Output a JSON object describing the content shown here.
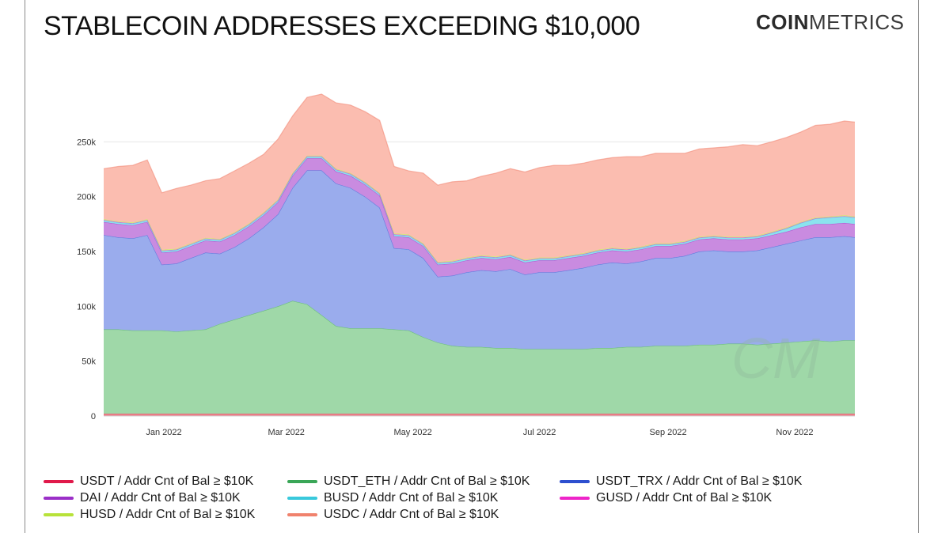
{
  "header": {
    "title": "STABLECOIN ADDRESSES EXCEEDING $10,000",
    "brand_bold": "COIN",
    "brand_thin": "METRICS"
  },
  "chart_data": {
    "type": "area",
    "stacked": true,
    "title": "STABLECOIN ADDRESSES EXCEEDING $10,000",
    "xlabel": "",
    "ylabel": "",
    "ylim": [
      0,
      300000
    ],
    "y_ticks": [
      0,
      50000,
      100000,
      150000,
      200000,
      250000
    ],
    "y_tick_labels": [
      "0",
      "50k",
      "100k",
      "150k",
      "200k",
      "250k"
    ],
    "x_ticks": [
      "2022-01-01",
      "2022-03-01",
      "2022-05-01",
      "2022-07-01",
      "2022-09-01",
      "2022-11-01"
    ],
    "x_tick_labels": [
      "Jan 2022",
      "Mar 2022",
      "May 2022",
      "Jul 2022",
      "Sep 2022",
      "Nov 2022"
    ],
    "x_range": [
      "2021-12-03",
      "2022-11-30"
    ],
    "grid": "horizontal",
    "legend_position": "bottom",
    "x": [
      "2021-12-03",
      "2021-12-10",
      "2021-12-17",
      "2021-12-24",
      "2021-12-31",
      "2022-01-07",
      "2022-01-14",
      "2022-01-21",
      "2022-01-28",
      "2022-02-04",
      "2022-02-11",
      "2022-02-18",
      "2022-02-25",
      "2022-03-04",
      "2022-03-11",
      "2022-03-18",
      "2022-03-25",
      "2022-04-01",
      "2022-04-08",
      "2022-04-15",
      "2022-04-22",
      "2022-04-29",
      "2022-05-06",
      "2022-05-13",
      "2022-05-20",
      "2022-05-27",
      "2022-06-03",
      "2022-06-10",
      "2022-06-17",
      "2022-06-24",
      "2022-07-01",
      "2022-07-08",
      "2022-07-15",
      "2022-07-22",
      "2022-07-29",
      "2022-08-05",
      "2022-08-12",
      "2022-08-19",
      "2022-08-26",
      "2022-09-02",
      "2022-09-09",
      "2022-09-16",
      "2022-09-23",
      "2022-09-30",
      "2022-10-07",
      "2022-10-14",
      "2022-10-21",
      "2022-10-28",
      "2022-11-04",
      "2022-11-11",
      "2022-11-18",
      "2022-11-25",
      "2022-11-30"
    ],
    "series": [
      {
        "name": "USDT / Addr Cnt of Bal ≥ $10K",
        "color": "#e0194a",
        "values": [
          2000,
          2000,
          2000,
          2000,
          2000,
          2000,
          2000,
          2000,
          2000,
          2000,
          2000,
          2000,
          2000,
          2000,
          2000,
          2000,
          2000,
          2000,
          2000,
          2000,
          2000,
          2000,
          2000,
          2000,
          2000,
          2000,
          2000,
          2000,
          2000,
          2000,
          2000,
          2000,
          2000,
          2000,
          2000,
          2000,
          2000,
          2000,
          2000,
          2000,
          2000,
          2000,
          2000,
          2000,
          2000,
          2000,
          2000,
          2000,
          2000,
          2000,
          2000,
          2000,
          2000
        ]
      },
      {
        "name": "USDT_ETH / Addr Cnt of Bal ≥ $10K",
        "color": "#3aa657",
        "values": [
          77000,
          77000,
          76000,
          76000,
          76000,
          75000,
          76000,
          77000,
          82000,
          86000,
          90000,
          94000,
          98000,
          103000,
          100000,
          90000,
          80000,
          78000,
          78000,
          78000,
          77000,
          76000,
          70000,
          65000,
          62000,
          61000,
          61000,
          60000,
          60000,
          59000,
          59000,
          59000,
          59000,
          59000,
          60000,
          60000,
          61000,
          61000,
          62000,
          62000,
          62000,
          63000,
          63000,
          64000,
          64000,
          63000,
          64000,
          65000,
          66000,
          67000,
          66000,
          67000,
          67000
        ]
      },
      {
        "name": "USDT_TRX / Addr Cnt of Bal ≥ $10K",
        "color": "#2d4fcf",
        "values": [
          86000,
          84000,
          84000,
          87000,
          60000,
          62000,
          66000,
          70000,
          64000,
          66000,
          70000,
          76000,
          84000,
          103000,
          122000,
          132000,
          130000,
          128000,
          120000,
          110000,
          74000,
          74000,
          72000,
          60000,
          64000,
          68000,
          70000,
          70000,
          72000,
          68000,
          70000,
          70000,
          72000,
          74000,
          76000,
          78000,
          76000,
          78000,
          80000,
          80000,
          82000,
          85000,
          86000,
          84000,
          84000,
          86000,
          88000,
          90000,
          92000,
          94000,
          95000,
          95000,
          94000
        ]
      },
      {
        "name": "DAI / Addr Cnt of Bal ≥ $10K",
        "color": "#9b2fc8",
        "values": [
          12000,
          12000,
          12000,
          12000,
          11000,
          11000,
          11000,
          11000,
          11000,
          11000,
          11000,
          11000,
          11000,
          11000,
          11000,
          11000,
          11000,
          11000,
          11000,
          11000,
          11000,
          11000,
          11000,
          11000,
          11000,
          11000,
          11000,
          11000,
          11000,
          11000,
          11000,
          11000,
          11000,
          11000,
          11000,
          11000,
          11000,
          11000,
          11000,
          11000,
          11000,
          11000,
          11000,
          11000,
          11000,
          11000,
          11000,
          11000,
          12000,
          12000,
          12000,
          12000,
          12000
        ]
      },
      {
        "name": "BUSD / Addr Cnt of Bal ≥ $10K",
        "color": "#39c9dc",
        "values": [
          1500,
          1500,
          1500,
          1500,
          1500,
          1500,
          1500,
          1500,
          1500,
          1500,
          1500,
          1500,
          1500,
          1500,
          1500,
          1500,
          1500,
          1500,
          1500,
          1500,
          1500,
          1500,
          1500,
          1500,
          1500,
          1500,
          1500,
          1500,
          1500,
          1500,
          1500,
          1500,
          1500,
          1500,
          1500,
          1500,
          1500,
          1500,
          1500,
          1500,
          1500,
          1500,
          1500,
          1500,
          1500,
          1500,
          2000,
          3000,
          4000,
          5000,
          6000,
          6000,
          6000
        ]
      },
      {
        "name": "GUSD / Addr Cnt of Bal ≥ $10K",
        "color": "#ee25c9",
        "values": [
          300,
          300,
          300,
          300,
          300,
          300,
          300,
          300,
          300,
          300,
          300,
          300,
          300,
          300,
          300,
          300,
          300,
          300,
          300,
          300,
          300,
          300,
          300,
          300,
          300,
          300,
          300,
          300,
          300,
          300,
          300,
          300,
          300,
          300,
          300,
          300,
          300,
          300,
          300,
          300,
          300,
          300,
          300,
          300,
          300,
          300,
          300,
          300,
          300,
          300,
          300,
          300,
          300
        ]
      },
      {
        "name": "HUSD / Addr Cnt of Bal ≥ $10K",
        "color": "#b8e23a",
        "values": [
          700,
          700,
          700,
          700,
          700,
          700,
          700,
          700,
          700,
          700,
          700,
          700,
          700,
          700,
          700,
          700,
          700,
          700,
          700,
          700,
          700,
          700,
          700,
          700,
          700,
          700,
          700,
          700,
          700,
          700,
          700,
          700,
          700,
          700,
          700,
          700,
          700,
          700,
          700,
          700,
          700,
          700,
          700,
          700,
          700,
          700,
          700,
          700,
          700,
          700,
          700,
          700,
          700
        ]
      },
      {
        "name": "USDC / Addr Cnt of Bal ≥ $10K",
        "color": "#f0826d",
        "values": [
          46000,
          50000,
          52000,
          54000,
          52000,
          55000,
          53000,
          52000,
          55000,
          56000,
          55000,
          53000,
          55000,
          52000,
          53000,
          56000,
          60000,
          62000,
          64000,
          66000,
          61000,
          58000,
          64000,
          70000,
          72000,
          70000,
          72000,
          76000,
          78000,
          80000,
          82000,
          84000,
          82000,
          82000,
          82000,
          82000,
          84000,
          82000,
          82000,
          82000,
          80000,
          80000,
          80000,
          82000,
          84000,
          82000,
          82000,
          82000,
          82000,
          84000,
          84000,
          86000,
          86000
        ]
      }
    ]
  },
  "legend": {
    "items": [
      {
        "label": "USDT / Addr Cnt of Bal ≥ $10K",
        "color": "#e0194a"
      },
      {
        "label": "USDT_ETH / Addr Cnt of Bal ≥ $10K",
        "color": "#3aa657"
      },
      {
        "label": "USDT_TRX / Addr Cnt of Bal ≥ $10K",
        "color": "#2d4fcf"
      },
      {
        "label": "DAI / Addr Cnt of Bal ≥ $10K",
        "color": "#9b2fc8"
      },
      {
        "label": "BUSD / Addr Cnt of Bal ≥ $10K",
        "color": "#39c9dc"
      },
      {
        "label": "GUSD / Addr Cnt of Bal ≥ $10K",
        "color": "#ee25c9"
      },
      {
        "label": "HUSD / Addr Cnt of Bal ≥ $10K",
        "color": "#b8e23a"
      },
      {
        "label": "USDC / Addr Cnt of Bal ≥ $10K",
        "color": "#f0826d"
      }
    ]
  },
  "area_colors": {
    "USDT": "#f07a86",
    "USDT_ETH": "#9fd8a8",
    "USDT_TRX": "#9aaced",
    "DAI": "#c98be0",
    "BUSD": "#8be3ee",
    "GUSD": "#f59be3",
    "HUSD": "#dff29a",
    "USDC": "#fbbdb0"
  },
  "watermark": "CM"
}
